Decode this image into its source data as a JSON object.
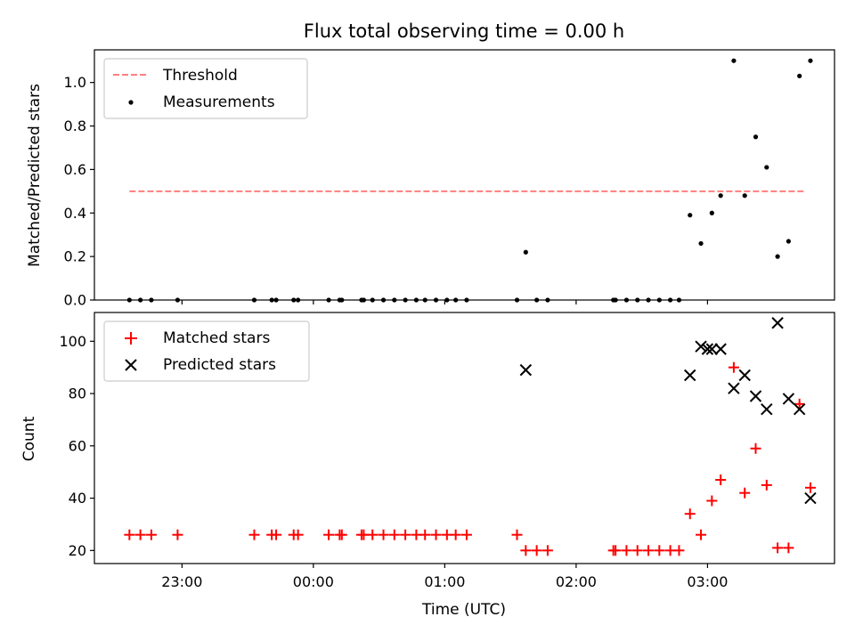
{
  "chart_data": [
    {
      "type": "scatter",
      "title": "Flux total observing time = 0.00 h",
      "ylabel": "Matched/Predicted stars",
      "xlabel": "",
      "x_unit": "time (UTC)",
      "xlim": [
        "22:20",
        "03:58"
      ],
      "ylim": [
        0.0,
        1.15
      ],
      "y_ticks": [
        0.0,
        0.2,
        0.4,
        0.6,
        0.8,
        1.0
      ],
      "legend": {
        "position": "top-left",
        "entries": [
          "Threshold",
          "Measurements"
        ]
      },
      "series": [
        {
          "name": "Threshold",
          "style": "dashed-line",
          "color": "#ff7f7f",
          "points": [
            [
              "22:36",
              0.5
            ],
            [
              "03:45",
              0.5
            ]
          ]
        },
        {
          "name": "Measurements",
          "style": "dot",
          "color": "#000000",
          "points": [
            [
              "22:36",
              0.0
            ],
            [
              "22:41",
              0.0
            ],
            [
              "22:46",
              0.0
            ],
            [
              "22:58",
              0.0
            ],
            [
              "23:33",
              0.0
            ],
            [
              "23:41",
              0.0
            ],
            [
              "23:43",
              0.0
            ],
            [
              "23:51",
              0.0
            ],
            [
              "23:53",
              0.0
            ],
            [
              "00:07",
              0.0
            ],
            [
              "00:12",
              0.0
            ],
            [
              "00:13",
              0.0
            ],
            [
              "00:22",
              0.0
            ],
            [
              "00:23",
              0.0
            ],
            [
              "00:27",
              0.0
            ],
            [
              "00:32",
              0.0
            ],
            [
              "00:37",
              0.0
            ],
            [
              "00:42",
              0.0
            ],
            [
              "00:47",
              0.0
            ],
            [
              "00:51",
              0.0
            ],
            [
              "00:56",
              0.0
            ],
            [
              "01:01",
              0.0
            ],
            [
              "01:05",
              0.0
            ],
            [
              "01:10",
              0.0
            ],
            [
              "01:33",
              0.0
            ],
            [
              "01:37",
              0.22
            ],
            [
              "01:42",
              0.0
            ],
            [
              "01:47",
              0.0
            ],
            [
              "02:17",
              0.0
            ],
            [
              "02:18",
              0.0
            ],
            [
              "02:23",
              0.0
            ],
            [
              "02:28",
              0.0
            ],
            [
              "02:33",
              0.0
            ],
            [
              "02:38",
              0.0
            ],
            [
              "02:43",
              0.0
            ],
            [
              "02:47",
              0.0
            ],
            [
              "02:52",
              0.39
            ],
            [
              "02:57",
              0.26
            ],
            [
              "03:02",
              0.4
            ],
            [
              "03:06",
              0.48
            ],
            [
              "03:12",
              1.1
            ],
            [
              "03:17",
              0.48
            ],
            [
              "03:22",
              0.75
            ],
            [
              "03:27",
              0.61
            ],
            [
              "03:32",
              0.2
            ],
            [
              "03:37",
              0.27
            ],
            [
              "03:42",
              1.03
            ],
            [
              "03:47",
              1.1
            ]
          ]
        }
      ]
    },
    {
      "type": "scatter",
      "title": "",
      "ylabel": "Count",
      "xlabel": "Time (UTC)",
      "xlim": [
        "22:20",
        "03:58"
      ],
      "ylim": [
        15,
        111
      ],
      "y_ticks": [
        20,
        40,
        60,
        80,
        100
      ],
      "x_tick_labels": [
        "23:00",
        "00:00",
        "01:00",
        "02:00",
        "03:00"
      ],
      "legend": {
        "position": "top-left",
        "entries": [
          "Matched stars",
          "Predicted stars"
        ]
      },
      "series": [
        {
          "name": "Matched stars",
          "style": "plus",
          "color": "#ff0000",
          "points": [
            [
              "22:36",
              26
            ],
            [
              "22:41",
              26
            ],
            [
              "22:46",
              26
            ],
            [
              "22:58",
              26
            ],
            [
              "23:33",
              26
            ],
            [
              "23:41",
              26
            ],
            [
              "23:43",
              26
            ],
            [
              "23:51",
              26
            ],
            [
              "23:53",
              26
            ],
            [
              "00:07",
              26
            ],
            [
              "00:12",
              26
            ],
            [
              "00:13",
              26
            ],
            [
              "00:22",
              26
            ],
            [
              "00:23",
              26
            ],
            [
              "00:27",
              26
            ],
            [
              "00:32",
              26
            ],
            [
              "00:37",
              26
            ],
            [
              "00:42",
              26
            ],
            [
              "00:47",
              26
            ],
            [
              "00:51",
              26
            ],
            [
              "00:56",
              26
            ],
            [
              "01:01",
              26
            ],
            [
              "01:05",
              26
            ],
            [
              "01:10",
              26
            ],
            [
              "01:33",
              26
            ],
            [
              "01:37",
              20
            ],
            [
              "01:42",
              20
            ],
            [
              "01:47",
              20
            ],
            [
              "02:17",
              20
            ],
            [
              "02:18",
              20
            ],
            [
              "02:23",
              20
            ],
            [
              "02:28",
              20
            ],
            [
              "02:33",
              20
            ],
            [
              "02:38",
              20
            ],
            [
              "02:43",
              20
            ],
            [
              "02:47",
              20
            ],
            [
              "02:52",
              34
            ],
            [
              "02:57",
              26
            ],
            [
              "03:02",
              39
            ],
            [
              "03:06",
              47
            ],
            [
              "03:12",
              90
            ],
            [
              "03:17",
              42
            ],
            [
              "03:22",
              59
            ],
            [
              "03:27",
              45
            ],
            [
              "03:32",
              21
            ],
            [
              "03:37",
              21
            ],
            [
              "03:42",
              76
            ],
            [
              "03:47",
              44
            ]
          ]
        },
        {
          "name": "Predicted stars",
          "style": "x",
          "color": "#000000",
          "points": [
            [
              "01:37",
              89
            ],
            [
              "02:52",
              87
            ],
            [
              "02:57",
              98
            ],
            [
              "03:00",
              97
            ],
            [
              "03:02",
              97
            ],
            [
              "03:06",
              97
            ],
            [
              "03:12",
              82
            ],
            [
              "03:17",
              87
            ],
            [
              "03:22",
              79
            ],
            [
              "03:27",
              74
            ],
            [
              "03:32",
              107
            ],
            [
              "03:37",
              78
            ],
            [
              "03:42",
              74
            ],
            [
              "03:47",
              40
            ]
          ]
        }
      ]
    }
  ]
}
